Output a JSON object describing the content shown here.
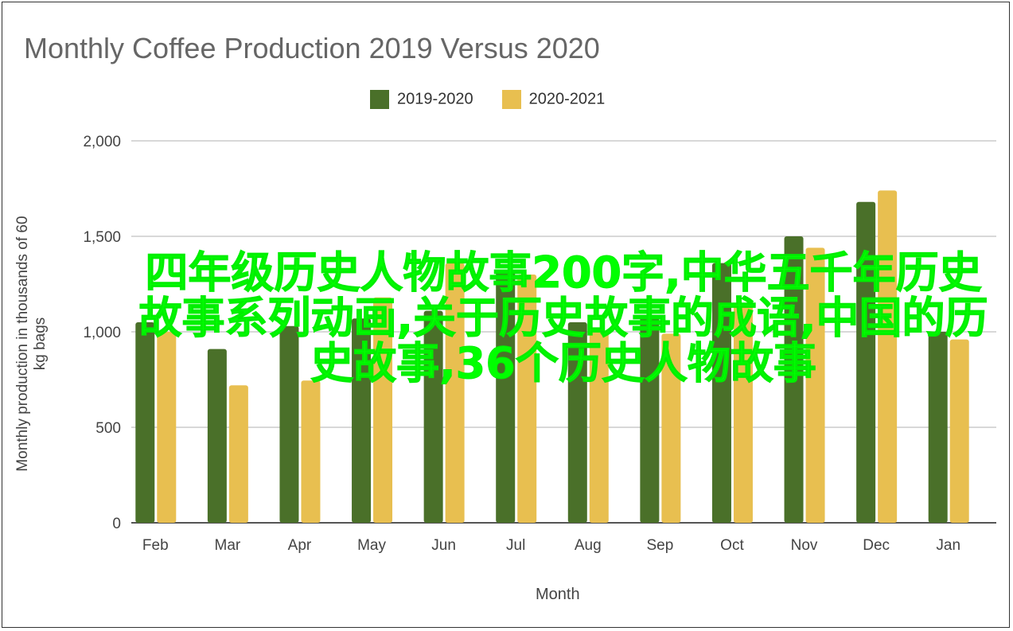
{
  "chart_data": {
    "type": "bar",
    "title": "Monthly Coffee Production 2019 Versus 2020",
    "xlabel": "Month",
    "ylabel": "Monthly production in thousands of 60 kg bags",
    "ylim": [
      0,
      2000
    ],
    "yticks": [
      "0",
      "500",
      "1,000",
      "1,500",
      "2,000"
    ],
    "ytick_values": [
      0,
      500,
      1000,
      1500,
      2000
    ],
    "grid": true,
    "legend_position": "top",
    "categories": [
      "Feb",
      "Mar",
      "Apr",
      "May",
      "Jun",
      "Jul",
      "Aug",
      "Sep",
      "Oct",
      "Nov",
      "Dec",
      "Jan"
    ],
    "series": [
      {
        "name": "2019-2020",
        "color": "#4a7029",
        "values": [
          1050,
          910,
          1030,
          1070,
          1110,
          1320,
          1050,
          1080,
          1360,
          1500,
          1680,
          1000
        ]
      },
      {
        "name": "2020-2021",
        "color": "#e8bf50",
        "values": [
          1000,
          720,
          745,
          1180,
          1360,
          1300,
          1000,
          990,
          1150,
          1440,
          1740,
          960
        ]
      }
    ]
  },
  "overlay_text": "四年级历史人物故事200字,中华五千年历史故事系列动画,关于历史故事的成语,中国的历史故事,36个历史人物故事"
}
